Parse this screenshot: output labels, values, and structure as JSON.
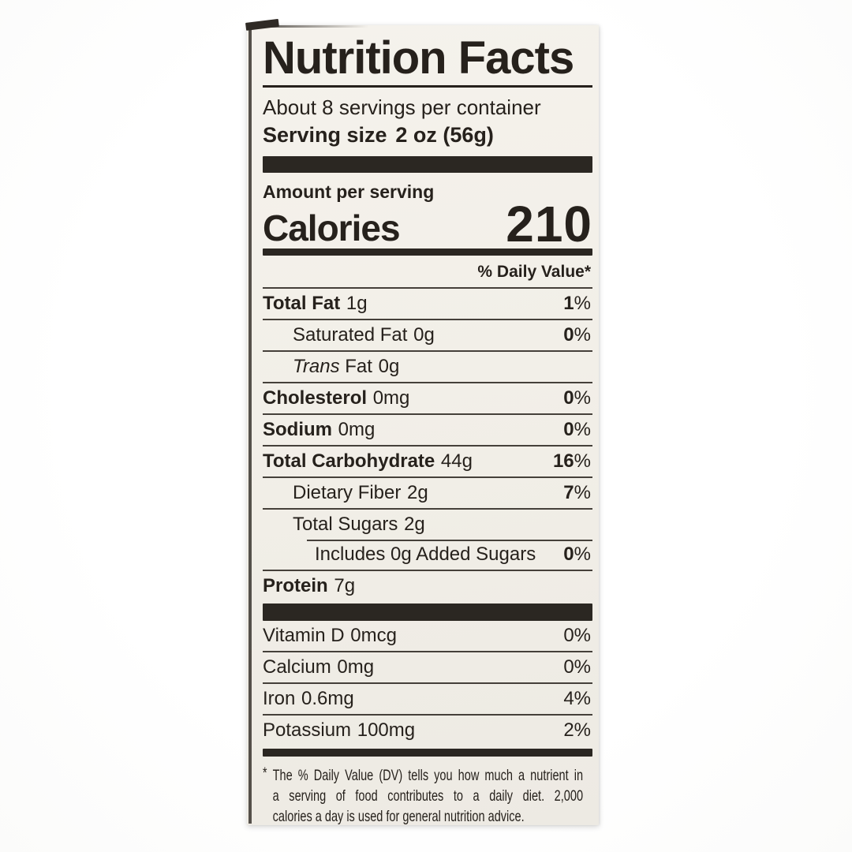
{
  "label": {
    "title": "Nutrition Facts",
    "servings_per_container": "About 8 servings per container",
    "serving_size_label": "Serving size",
    "serving_size_value": "2 oz (56g)",
    "amount_per_serving": "Amount per serving",
    "calories_label": "Calories",
    "calories_value": "210",
    "daily_value_header": "% Daily Value*",
    "nutrients": [
      {
        "name": "Total Fat",
        "amount": "1g",
        "dv": "1%",
        "bold": true,
        "indent": 0
      },
      {
        "name": "Saturated Fat",
        "amount": "0g",
        "dv": "0%",
        "bold": false,
        "indent": 1
      },
      {
        "name": "Fat",
        "italic_prefix": "Trans",
        "amount": "0g",
        "dv": "",
        "bold": false,
        "indent": 1
      },
      {
        "name": "Cholesterol",
        "amount": "0mg",
        "dv": "0%",
        "bold": true,
        "indent": 0
      },
      {
        "name": "Sodium",
        "amount": "0mg",
        "dv": "0%",
        "bold": true,
        "indent": 0
      },
      {
        "name": "Total Carbohydrate",
        "amount": "44g",
        "dv": "16%",
        "bold": true,
        "indent": 0
      },
      {
        "name": "Dietary Fiber",
        "amount": "2g",
        "dv": "7%",
        "bold": false,
        "indent": 1
      },
      {
        "name": "Total Sugars",
        "amount": "2g",
        "dv": "",
        "bold": false,
        "indent": 1
      },
      {
        "name": "Includes 0g Added Sugars",
        "amount": "",
        "dv": "0%",
        "bold": false,
        "indent": 2,
        "partial_rule": true
      },
      {
        "name": "Protein",
        "amount": "7g",
        "dv": "",
        "bold": true,
        "indent": 0
      }
    ],
    "vitamins": [
      {
        "name": "Vitamin D",
        "amount": "0mcg",
        "dv": "0%"
      },
      {
        "name": "Calcium",
        "amount": "0mg",
        "dv": "0%"
      },
      {
        "name": "Iron",
        "amount": "0.6mg",
        "dv": "4%"
      },
      {
        "name": "Potassium",
        "amount": "100mg",
        "dv": "2%"
      }
    ],
    "footnote_star": "*",
    "footnote_lines": [
      "The % Daily Value (DV) tells you how much a nutrient in",
      "a serving of food contributes to a daily diet. 2,000",
      "calories a day is used for general nutrition advice."
    ],
    "colors": {
      "paper": "#f2efe8",
      "ink": "#26211c",
      "bar": "#2b2722",
      "background": "#ffffff"
    }
  }
}
